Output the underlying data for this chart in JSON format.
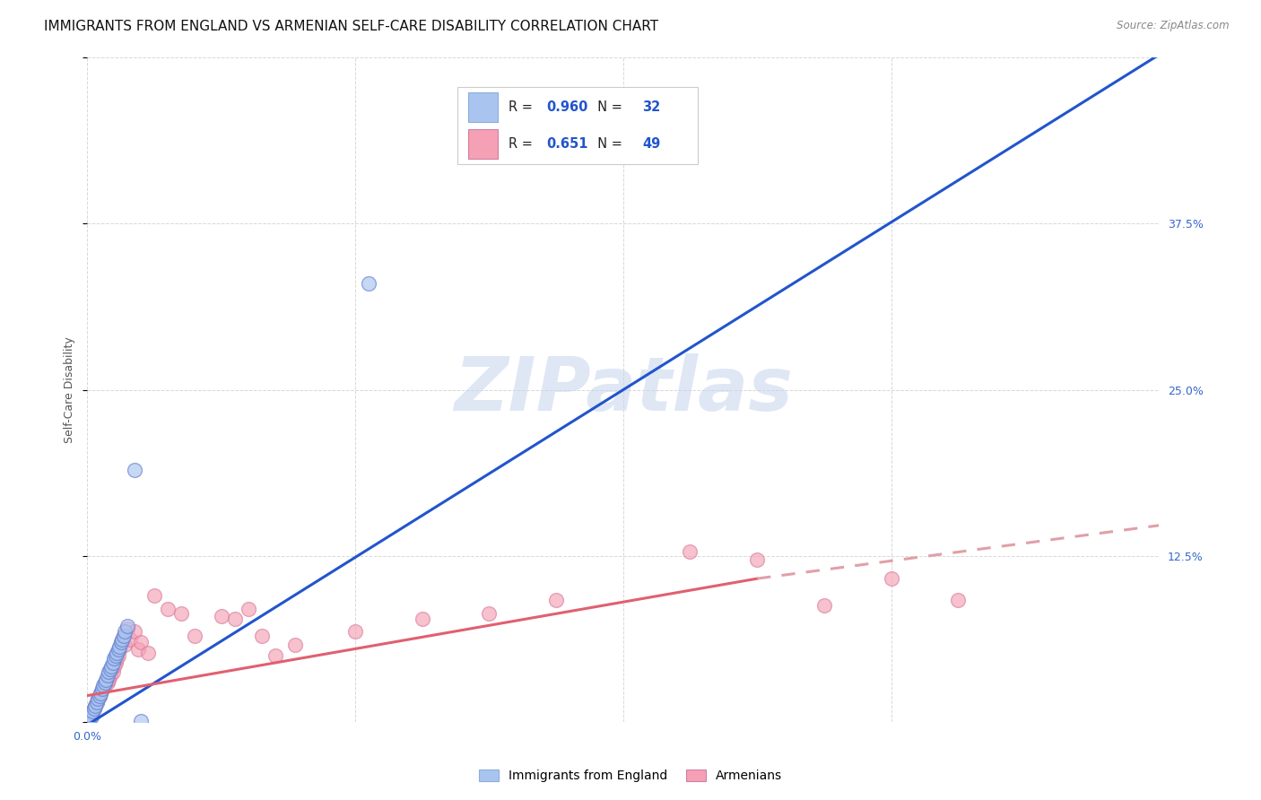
{
  "title": "IMMIGRANTS FROM ENGLAND VS ARMENIAN SELF-CARE DISABILITY CORRELATION CHART",
  "source": "Source: ZipAtlas.com",
  "ylabel": "Self-Care Disability",
  "xlim": [
    0.0,
    0.8
  ],
  "ylim": [
    0.0,
    0.5
  ],
  "xtick_positions": [
    0.0,
    0.2,
    0.4,
    0.6,
    0.8
  ],
  "xtick_labels_shown": {
    "0.0": "0.0%"
  },
  "ytick_positions": [
    0.0,
    0.125,
    0.25,
    0.375,
    0.5
  ],
  "ytick_labels_right": {
    "0.0": "",
    "0.125": "12.5%",
    "0.25": "25.0%",
    "0.375": "37.5%"
  },
  "background_color": "#ffffff",
  "grid_color": "#d8d8d8",
  "watermark": "ZIPatlas",
  "legend": {
    "blue_r": "0.960",
    "blue_n": "32",
    "pink_r": "0.651",
    "pink_n": "49",
    "blue_color": "#aac4f0",
    "pink_color": "#f5a0b5"
  },
  "blue_scatter": [
    [
      0.001,
      0.003
    ],
    [
      0.002,
      0.005
    ],
    [
      0.003,
      0.004
    ],
    [
      0.004,
      0.008
    ],
    [
      0.005,
      0.01
    ],
    [
      0.006,
      0.012
    ],
    [
      0.007,
      0.015
    ],
    [
      0.008,
      0.018
    ],
    [
      0.009,
      0.02
    ],
    [
      0.01,
      0.022
    ],
    [
      0.011,
      0.025
    ],
    [
      0.012,
      0.028
    ],
    [
      0.013,
      0.03
    ],
    [
      0.014,
      0.032
    ],
    [
      0.015,
      0.035
    ],
    [
      0.016,
      0.038
    ],
    [
      0.017,
      0.04
    ],
    [
      0.018,
      0.042
    ],
    [
      0.019,
      0.045
    ],
    [
      0.02,
      0.048
    ],
    [
      0.021,
      0.05
    ],
    [
      0.022,
      0.052
    ],
    [
      0.023,
      0.055
    ],
    [
      0.024,
      0.057
    ],
    [
      0.025,
      0.06
    ],
    [
      0.026,
      0.062
    ],
    [
      0.027,
      0.065
    ],
    [
      0.028,
      0.068
    ],
    [
      0.03,
      0.072
    ],
    [
      0.035,
      0.19
    ],
    [
      0.04,
      0.001
    ],
    [
      0.21,
      0.33
    ]
  ],
  "pink_scatter": [
    [
      0.002,
      0.003
    ],
    [
      0.003,
      0.005
    ],
    [
      0.004,
      0.007
    ],
    [
      0.005,
      0.01
    ],
    [
      0.006,
      0.012
    ],
    [
      0.007,
      0.015
    ],
    [
      0.008,
      0.018
    ],
    [
      0.009,
      0.02
    ],
    [
      0.01,
      0.022
    ],
    [
      0.011,
      0.025
    ],
    [
      0.013,
      0.028
    ],
    [
      0.015,
      0.03
    ],
    [
      0.016,
      0.032
    ],
    [
      0.017,
      0.035
    ],
    [
      0.018,
      0.04
    ],
    [
      0.019,
      0.038
    ],
    [
      0.02,
      0.042
    ],
    [
      0.021,
      0.045
    ],
    [
      0.022,
      0.048
    ],
    [
      0.023,
      0.05
    ],
    [
      0.024,
      0.055
    ],
    [
      0.025,
      0.06
    ],
    [
      0.027,
      0.065
    ],
    [
      0.028,
      0.058
    ],
    [
      0.03,
      0.07
    ],
    [
      0.032,
      0.062
    ],
    [
      0.035,
      0.068
    ],
    [
      0.038,
      0.055
    ],
    [
      0.04,
      0.06
    ],
    [
      0.045,
      0.052
    ],
    [
      0.05,
      0.095
    ],
    [
      0.06,
      0.085
    ],
    [
      0.07,
      0.082
    ],
    [
      0.08,
      0.065
    ],
    [
      0.1,
      0.08
    ],
    [
      0.11,
      0.078
    ],
    [
      0.12,
      0.085
    ],
    [
      0.13,
      0.065
    ],
    [
      0.14,
      0.05
    ],
    [
      0.155,
      0.058
    ],
    [
      0.2,
      0.068
    ],
    [
      0.25,
      0.078
    ],
    [
      0.3,
      0.082
    ],
    [
      0.35,
      0.092
    ],
    [
      0.45,
      0.128
    ],
    [
      0.5,
      0.122
    ],
    [
      0.55,
      0.088
    ],
    [
      0.6,
      0.108
    ],
    [
      0.65,
      0.092
    ]
  ],
  "blue_line": {
    "x0": 0.0,
    "y0": -0.002,
    "x1": 0.8,
    "y1": 0.502
  },
  "pink_line_solid": {
    "x0": 0.0,
    "y0": 0.02,
    "x1": 0.5,
    "y1": 0.108
  },
  "pink_line_dashed": {
    "x0": 0.5,
    "y0": 0.108,
    "x1": 0.8,
    "y1": 0.148
  },
  "blue_line_color": "#2255cc",
  "pink_line_solid_color": "#e06070",
  "pink_line_dashed_color": "#e0a0a8",
  "title_fontsize": 11,
  "axis_label_fontsize": 9,
  "tick_fontsize": 9,
  "tick_color": "#3366cc"
}
